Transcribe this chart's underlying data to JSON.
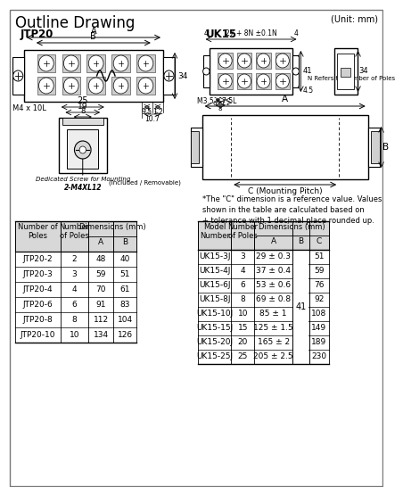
{
  "title": "Outline Drawing",
  "unit": "(Unit: mm)",
  "jtp20_label": "JTP20",
  "uk15_label": "UK15",
  "bg_color": "#ffffff",
  "jtp_table": {
    "col_headers": [
      "Number of\nPoles",
      "Number\nof Poles",
      "Dimensions (mm)"
    ],
    "sub_headers": [
      "",
      "",
      "A",
      "B"
    ],
    "rows": [
      [
        "JTP20-2",
        "2",
        "48",
        "40"
      ],
      [
        "JTP20-3",
        "3",
        "59",
        "51"
      ],
      [
        "JTP20-4",
        "4",
        "70",
        "61"
      ],
      [
        "JTP20-6",
        "6",
        "91",
        "83"
      ],
      [
        "JTP20-8",
        "8",
        "112",
        "104"
      ],
      [
        "JTP20-10",
        "10",
        "134",
        "126"
      ]
    ]
  },
  "uk15_note": "*The \"C\" dimension is a reference value. Values\nshown in the table are calculated based on\n+ tolerance with 1 decimal place rounded up.",
  "uk15_table": {
    "col_headers": [
      "Model\nNumber",
      "Number\nof Poles",
      "Dimensions (mm)"
    ],
    "sub_headers": [
      "",
      "",
      "A",
      "B",
      "C"
    ],
    "rows": [
      [
        "UK15-3J",
        "3",
        "29 ± 0.3",
        "",
        "51"
      ],
      [
        "UK15-4J",
        "4",
        "37 ± 0.4",
        "",
        "59"
      ],
      [
        "UK15-6J",
        "6",
        "53 ± 0.6",
        "",
        "76"
      ],
      [
        "UK15-8J",
        "8",
        "69 ± 0.8",
        "",
        "92"
      ],
      [
        "UK15-10J",
        "10",
        "85 ± 1",
        "41",
        "108"
      ],
      [
        "UK15-15J",
        "15",
        "125 ± 1.5",
        "",
        "149"
      ],
      [
        "UK15-20J",
        "20",
        "165 ± 2",
        "",
        "189"
      ],
      [
        "UK15-25J",
        "25",
        "205 ± 2.5",
        "",
        "230"
      ]
    ]
  }
}
